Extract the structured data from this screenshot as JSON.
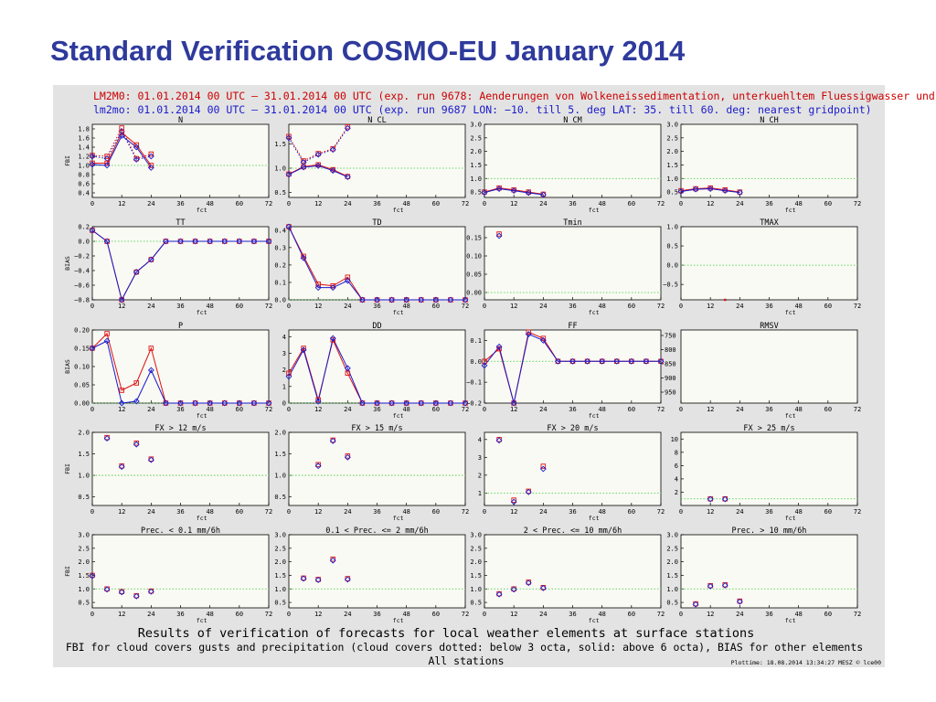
{
  "slide": {
    "title": "Standard Verification COSMO-EU January 2014"
  },
  "header": {
    "line1": "LM2M0: 01.01.2014 00 UTC — 31.01.2014 00 UTC (exp. run 9678: Aenderungen von Wolkeneissedimentation, unterkuehltem Fluessigwasser und",
    "line2": "lm2mo: 01.01.2014 00 UTC — 31.01.2014 00 UTC (exp. run 9687 LON: −10. till 5. deg LAT: 35. till 60. deg: nearest gridpoint)"
  },
  "footer": {
    "line1": "Results of verification of forecasts for local weather elements at surface stations",
    "line2": "FBI for cloud covers gusts and precipitation (cloud covers dotted: below 3 octa, solid: above 6 octa), BIAS for other elements",
    "line3": "All stations",
    "plottime": "Plottime: 18.08.2014 13:34:27 MESZ © lce00"
  },
  "colors": {
    "series1": "#dd1111",
    "series2": "#1a1acc",
    "reference": "#33cc33",
    "title": "#2e3a9c"
  },
  "xlabel": "fct",
  "chart_data": [
    {
      "name": "N",
      "type": "line",
      "row": 0,
      "col": 0,
      "ylabel": "FBI",
      "ylim": [
        0.3,
        1.9
      ],
      "yticks": [
        "1.8",
        "1.6",
        "1.4",
        "1.2",
        "1.0",
        "0.8",
        "0.6",
        "0.4"
      ],
      "yvals": [
        1.8,
        1.6,
        1.4,
        1.2,
        1.0,
        0.8,
        0.6,
        0.4
      ],
      "ref": 1.0,
      "series": [
        {
          "style": "dotted",
          "markers": true,
          "x": [
            0,
            6,
            12,
            18,
            24
          ],
          "s1": [
            1.22,
            1.2,
            1.82,
            1.15,
            1.25
          ],
          "s2": [
            1.2,
            1.15,
            1.75,
            1.13,
            1.2
          ]
        },
        {
          "style": "solid",
          "markers": true,
          "x": [
            0,
            6,
            12,
            18,
            24
          ],
          "s1": [
            1.05,
            1.05,
            1.72,
            1.45,
            1.0
          ],
          "s2": [
            1.02,
            1.0,
            1.65,
            1.4,
            0.95
          ]
        }
      ]
    },
    {
      "name": "N CL",
      "type": "line",
      "row": 0,
      "col": 1,
      "ylabel": "",
      "ylim": [
        0.4,
        1.9
      ],
      "yticks": [
        "1.5",
        "1.0",
        "0.5"
      ],
      "yvals": [
        1.5,
        1.0,
        0.5
      ],
      "ref": 1.0,
      "series": [
        {
          "style": "dotted",
          "markers": true,
          "x": [
            0,
            6,
            12,
            18,
            24
          ],
          "s1": [
            1.65,
            1.15,
            1.3,
            1.4,
            1.85
          ],
          "s2": [
            1.62,
            1.12,
            1.28,
            1.38,
            1.82
          ]
        },
        {
          "style": "solid",
          "markers": true,
          "x": [
            0,
            6,
            12,
            18,
            24
          ],
          "s1": [
            0.88,
            1.03,
            1.07,
            0.97,
            0.83
          ],
          "s2": [
            0.87,
            1.02,
            1.05,
            0.95,
            0.82
          ]
        }
      ]
    },
    {
      "name": "N CM",
      "type": "line",
      "row": 0,
      "col": 2,
      "ylabel": "",
      "ylim": [
        0.3,
        3.0
      ],
      "yticks": [
        "3.0",
        "2.5",
        "2.0",
        "1.5",
        "1.0",
        "0.5"
      ],
      "yvals": [
        3.0,
        2.5,
        2.0,
        1.5,
        1.0,
        0.5
      ],
      "ref": 1.0,
      "series": [
        {
          "style": "solid",
          "markers": true,
          "x": [
            0,
            6,
            12,
            18,
            24
          ],
          "s1": [
            0.5,
            0.65,
            0.58,
            0.5,
            0.42
          ],
          "s2": [
            0.48,
            0.62,
            0.55,
            0.47,
            0.4
          ]
        }
      ]
    },
    {
      "name": "N CH",
      "type": "line",
      "row": 0,
      "col": 3,
      "ylabel": "",
      "ylim": [
        0.3,
        3.0
      ],
      "yticks": [
        "3.0",
        "2.5",
        "2.0",
        "1.5",
        "1.0",
        "0.5"
      ],
      "yvals": [
        3.0,
        2.5,
        2.0,
        1.5,
        1.0,
        0.5
      ],
      "ref": 1.0,
      "series": [
        {
          "style": "solid",
          "markers": true,
          "x": [
            0,
            6,
            12,
            18,
            24
          ],
          "s1": [
            0.55,
            0.62,
            0.65,
            0.58,
            0.5
          ],
          "s2": [
            0.52,
            0.6,
            0.62,
            0.55,
            0.48
          ]
        }
      ]
    },
    {
      "name": "TT",
      "type": "line",
      "row": 1,
      "col": 0,
      "ylabel": "BIAS",
      "ylim": [
        -0.8,
        0.2
      ],
      "yticks": [
        "0.2",
        "0.0",
        "−0.2",
        "−0.4",
        "−0.6",
        "−0.8"
      ],
      "yvals": [
        0.2,
        0.0,
        -0.2,
        -0.4,
        -0.6,
        -0.8
      ],
      "ref": 0.0,
      "series": [
        {
          "style": "solid",
          "markers": true,
          "x": [
            0,
            6,
            12,
            18,
            24,
            30,
            36,
            42,
            48,
            54,
            60,
            66,
            72
          ],
          "s1": [
            0.15,
            0.0,
            -0.8,
            -0.42,
            -0.25,
            0,
            0,
            0,
            0,
            0,
            0,
            0,
            0
          ],
          "s2": [
            0.15,
            0.0,
            -0.8,
            -0.42,
            -0.25,
            0,
            0,
            0,
            0,
            0,
            0,
            0,
            0
          ]
        }
      ]
    },
    {
      "name": "TD",
      "type": "line",
      "row": 1,
      "col": 1,
      "ylabel": "",
      "ylim": [
        0.0,
        0.42
      ],
      "yticks": [
        "0.4",
        "0.3",
        "0.2",
        "0.1",
        "0.0"
      ],
      "yvals": [
        0.4,
        0.3,
        0.2,
        0.1,
        0.0
      ],
      "ref": 0.0,
      "series": [
        {
          "style": "solid",
          "markers": true,
          "x": [
            0,
            6,
            12,
            18,
            24,
            30,
            36,
            42,
            48,
            54,
            60,
            66,
            72
          ],
          "s1": [
            0.42,
            0.25,
            0.09,
            0.08,
            0.13,
            0,
            0,
            0,
            0,
            0,
            0,
            0,
            0
          ],
          "s2": [
            0.42,
            0.24,
            0.07,
            0.07,
            0.11,
            0,
            0,
            0,
            0,
            0,
            0,
            0,
            0
          ]
        }
      ]
    },
    {
      "name": "Tmin",
      "type": "line",
      "row": 1,
      "col": 2,
      "ylabel": "",
      "ylim": [
        -0.02,
        0.18
      ],
      "yticks": [
        "0.15",
        "0.10",
        "0.05",
        "0.00"
      ],
      "yvals": [
        0.15,
        0.1,
        0.05,
        0.0
      ],
      "ref": 0.0,
      "series": [
        {
          "style": "solid",
          "markers": true,
          "x": [
            6
          ],
          "s1": [
            0.16
          ],
          "s2": [
            0.155
          ]
        }
      ]
    },
    {
      "name": "TMAX",
      "type": "line",
      "row": 1,
      "col": 3,
      "ylabel": "",
      "ylim": [
        -0.9,
        1.0
      ],
      "yticks": [
        "1.0",
        "0.5",
        "0.0",
        "−0.5"
      ],
      "yvals": [
        1.0,
        0.5,
        0.0,
        -0.5
      ],
      "ref": 0.0,
      "series": [
        {
          "style": "solid",
          "markers": false,
          "x": [
            18
          ],
          "s1": [
            -0.9
          ],
          "s2": [
            -0.9
          ]
        }
      ]
    },
    {
      "name": "P",
      "type": "line",
      "row": 2,
      "col": 0,
      "ylabel": "BIAS",
      "ylim": [
        0.0,
        0.2
      ],
      "yticks": [
        "0.20",
        "0.15",
        "0.10",
        "0.05",
        "0.00"
      ],
      "yvals": [
        0.2,
        0.15,
        0.1,
        0.05,
        0.0
      ],
      "ref": 0.0,
      "series": [
        {
          "style": "solid",
          "markers": true,
          "x": [
            0,
            6,
            12,
            18,
            24,
            30,
            36,
            42,
            48,
            54,
            60,
            66,
            72
          ],
          "s1": [
            0.15,
            0.19,
            0.035,
            0.055,
            0.15,
            0,
            0,
            0,
            0,
            0,
            0,
            0,
            0
          ],
          "s2": [
            0.15,
            0.17,
            0.0,
            0.005,
            0.09,
            0,
            0,
            0,
            0,
            0,
            0,
            0,
            0
          ]
        }
      ]
    },
    {
      "name": "DD",
      "type": "line",
      "row": 2,
      "col": 1,
      "ylabel": "",
      "ylim": [
        0,
        4.4
      ],
      "yticks": [
        "4",
        "3",
        "2",
        "1",
        "0"
      ],
      "yvals": [
        4,
        3,
        2,
        1,
        0
      ],
      "ref": 0,
      "series": [
        {
          "style": "solid",
          "markers": true,
          "x": [
            0,
            6,
            12,
            18,
            24,
            30,
            36,
            42,
            48,
            54,
            60,
            66,
            72
          ],
          "s1": [
            1.8,
            3.3,
            0.2,
            3.8,
            1.8,
            0,
            0,
            0,
            0,
            0,
            0,
            0,
            0
          ],
          "s2": [
            1.6,
            3.2,
            0.1,
            3.9,
            2.1,
            0,
            0,
            0,
            0,
            0,
            0,
            0,
            0
          ]
        }
      ]
    },
    {
      "name": "FF",
      "type": "line",
      "row": 2,
      "col": 2,
      "ylabel": "",
      "ylim": [
        -0.2,
        0.15
      ],
      "yticks": [
        "0.1",
        "0.0",
        "−0.1",
        "−0.2"
      ],
      "yvals": [
        0.1,
        0.0,
        -0.1,
        -0.2
      ],
      "ref": 0.0,
      "right_yticks": [
        "750",
        "800",
        "850",
        "900",
        "950"
      ],
      "series": [
        {
          "style": "solid",
          "markers": true,
          "x": [
            0,
            6,
            12,
            18,
            24,
            30,
            36,
            42,
            48,
            54,
            60,
            66,
            72
          ],
          "s1": [
            0.0,
            0.06,
            -0.2,
            0.14,
            0.11,
            0,
            0,
            0,
            0,
            0,
            0,
            0,
            0
          ],
          "s2": [
            -0.02,
            0.07,
            -0.2,
            0.13,
            0.1,
            0,
            0,
            0,
            0,
            0,
            0,
            0,
            0
          ]
        }
      ]
    },
    {
      "name": "RMSV",
      "type": "line",
      "row": 2,
      "col": 3,
      "ylabel": "",
      "ylim": [
        0,
        1
      ],
      "yticks": [],
      "yvals": [],
      "ref": null,
      "series": []
    },
    {
      "name": "FX > 12 m/s",
      "type": "scatter",
      "row": 3,
      "col": 0,
      "ylabel": "FBI",
      "ylim": [
        0.3,
        2.0
      ],
      "yticks": [
        "2.0",
        "1.5",
        "1.0",
        "0.5"
      ],
      "yvals": [
        2.0,
        1.5,
        1.0,
        0.5
      ],
      "ref": 1.0,
      "series": [
        {
          "style": "points",
          "markers": true,
          "x": [
            6,
            12,
            18,
            24
          ],
          "s1": [
            1.88,
            1.22,
            1.75,
            1.38
          ],
          "s2": [
            1.86,
            1.2,
            1.72,
            1.36
          ]
        }
      ]
    },
    {
      "name": "FX > 15 m/s",
      "type": "scatter",
      "row": 3,
      "col": 1,
      "ylabel": "",
      "ylim": [
        0.3,
        2.0
      ],
      "yticks": [
        "2.0",
        "1.5",
        "1.0",
        "0.5"
      ],
      "yvals": [
        2.0,
        1.5,
        1.0,
        0.5
      ],
      "ref": 1.0,
      "series": [
        {
          "style": "points",
          "markers": true,
          "x": [
            12,
            18,
            24
          ],
          "s1": [
            1.25,
            1.82,
            1.45
          ],
          "s2": [
            1.22,
            1.8,
            1.42
          ]
        }
      ]
    },
    {
      "name": "FX > 20 m/s",
      "type": "scatter",
      "row": 3,
      "col": 2,
      "ylabel": "",
      "ylim": [
        0.3,
        4.4
      ],
      "yticks": [
        "4",
        "3",
        "2",
        "1"
      ],
      "yvals": [
        4,
        3,
        2,
        1
      ],
      "ref": 1.0,
      "series": [
        {
          "style": "points",
          "markers": true,
          "x": [
            6,
            12,
            18,
            24
          ],
          "s1": [
            4.0,
            0.6,
            1.1,
            2.5
          ],
          "s2": [
            3.95,
            0.5,
            1.05,
            2.35
          ]
        }
      ]
    },
    {
      "name": "FX > 25 m/s",
      "type": "scatter",
      "row": 3,
      "col": 3,
      "ylabel": "",
      "ylim": [
        0,
        11
      ],
      "yticks": [
        "10",
        "8",
        "6",
        "4",
        "2"
      ],
      "yvals": [
        10,
        8,
        6,
        4,
        2
      ],
      "ref": 1.0,
      "series": [
        {
          "style": "points",
          "markers": true,
          "x": [
            12,
            18
          ],
          "s1": [
            1.0,
            1.0
          ],
          "s2": [
            0.95,
            0.95
          ]
        }
      ]
    },
    {
      "name": "Prec. < 0.1 mm/6h",
      "type": "scatter",
      "row": 4,
      "col": 0,
      "ylabel": "FBI",
      "ylim": [
        0.3,
        3.0
      ],
      "yticks": [
        "3.0",
        "2.5",
        "2.0",
        "1.5",
        "1.0",
        "0.5"
      ],
      "yvals": [
        3.0,
        2.5,
        2.0,
        1.5,
        1.0,
        0.5
      ],
      "ref": 1.0,
      "series": [
        {
          "style": "points",
          "markers": true,
          "x": [
            0,
            6,
            12,
            18,
            24
          ],
          "s1": [
            1.5,
            1.0,
            0.9,
            0.75,
            0.92
          ],
          "s2": [
            1.48,
            0.98,
            0.88,
            0.73,
            0.9
          ]
        }
      ]
    },
    {
      "name": "0.1 < Prec. <= 2 mm/6h",
      "type": "scatter",
      "row": 4,
      "col": 1,
      "ylabel": "",
      "ylim": [
        0.3,
        3.0
      ],
      "yticks": [
        "3.0",
        "2.5",
        "2.0",
        "1.5",
        "1.0",
        "0.5"
      ],
      "yvals": [
        3.0,
        2.5,
        2.0,
        1.5,
        1.0,
        0.5
      ],
      "ref": 1.0,
      "series": [
        {
          "style": "points",
          "markers": true,
          "x": [
            6,
            12,
            18,
            24
          ],
          "s1": [
            1.4,
            1.35,
            2.1,
            1.38
          ],
          "s2": [
            1.38,
            1.33,
            2.05,
            1.35
          ]
        }
      ]
    },
    {
      "name": "2 < Prec. <= 10 mm/6h",
      "type": "scatter",
      "row": 4,
      "col": 2,
      "ylabel": "",
      "ylim": [
        0.3,
        3.0
      ],
      "yticks": [
        "3.0",
        "2.5",
        "2.0",
        "1.5",
        "1.0",
        "0.5"
      ],
      "yvals": [
        3.0,
        2.5,
        2.0,
        1.5,
        1.0,
        0.5
      ],
      "ref": 1.0,
      "series": [
        {
          "style": "points",
          "markers": true,
          "x": [
            6,
            12,
            18,
            24
          ],
          "s1": [
            0.82,
            1.0,
            1.25,
            1.05
          ],
          "s2": [
            0.8,
            0.98,
            1.22,
            1.03
          ]
        }
      ]
    },
    {
      "name": "Prec. > 10 mm/6h",
      "type": "scatter",
      "row": 4,
      "col": 3,
      "ylabel": "",
      "ylim": [
        0.3,
        3.0
      ],
      "yticks": [
        "3.0",
        "2.5",
        "2.0",
        "1.5",
        "1.0",
        "0.5"
      ],
      "yvals": [
        3.0,
        2.5,
        2.0,
        1.5,
        1.0,
        0.5
      ],
      "ref": 1.0,
      "series": [
        {
          "style": "points",
          "markers": true,
          "x": [
            6,
            12,
            18,
            24
          ],
          "s1": [
            0.45,
            1.12,
            1.15,
            0.55
          ],
          "s2": [
            0.43,
            1.1,
            1.13,
            0.53
          ]
        }
      ]
    }
  ],
  "xticks": [
    "0",
    "12",
    "24",
    "36",
    "48",
    "60",
    "72"
  ],
  "xtick_values": [
    0,
    12,
    24,
    36,
    48,
    60,
    72
  ],
  "xlim": [
    0,
    72
  ]
}
